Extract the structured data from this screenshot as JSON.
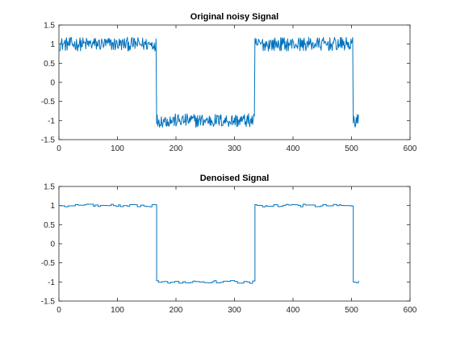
{
  "chart_data": [
    {
      "type": "line",
      "title": "Original noisy Signal",
      "xlabel": "",
      "ylabel": "",
      "xlim": [
        0,
        600
      ],
      "ylim": [
        -1.5,
        1.5
      ],
      "xticks": [
        0,
        100,
        200,
        300,
        400,
        500,
        600
      ],
      "xtick_labels": [
        "0",
        "100",
        "200",
        "300",
        "400",
        "500",
        "600"
      ],
      "yticks": [
        -1.5,
        -1,
        -0.5,
        0,
        0.5,
        1,
        1.5
      ],
      "ytick_labels": [
        "-1.5",
        "-1",
        "-0.5",
        "0",
        "0.5",
        "1",
        "1.5"
      ],
      "grid": false,
      "color": "#0072BD",
      "segments": [
        {
          "x_start": 1,
          "x_end": 166,
          "level": 1.0
        },
        {
          "x_start": 167,
          "x_end": 334,
          "level": -1.0
        },
        {
          "x_start": 335,
          "x_end": 502,
          "level": 1.0
        },
        {
          "x_start": 503,
          "x_end": 512,
          "level": -1.0
        }
      ],
      "noise_amplitude": 0.18
    },
    {
      "type": "line",
      "title": "Denoised Signal",
      "xlabel": "",
      "ylabel": "",
      "xlim": [
        0,
        600
      ],
      "ylim": [
        -1.5,
        1.5
      ],
      "xticks": [
        0,
        100,
        200,
        300,
        400,
        500,
        600
      ],
      "xtick_labels": [
        "0",
        "100",
        "200",
        "300",
        "400",
        "500",
        "600"
      ],
      "yticks": [
        -1.5,
        -1,
        -0.5,
        0,
        0.5,
        1,
        1.5
      ],
      "ytick_labels": [
        "-1.5",
        "-1",
        "-0.5",
        "0",
        "0.5",
        "1",
        "1.5"
      ],
      "grid": false,
      "color": "#0072BD",
      "segments": [
        {
          "x_start": 1,
          "x_end": 166,
          "level": 1.0
        },
        {
          "x_start": 167,
          "x_end": 334,
          "level": -1.0
        },
        {
          "x_start": 335,
          "x_end": 502,
          "level": 1.0
        },
        {
          "x_start": 503,
          "x_end": 512,
          "level": -1.0
        }
      ],
      "noise_amplitude": 0.06
    }
  ]
}
